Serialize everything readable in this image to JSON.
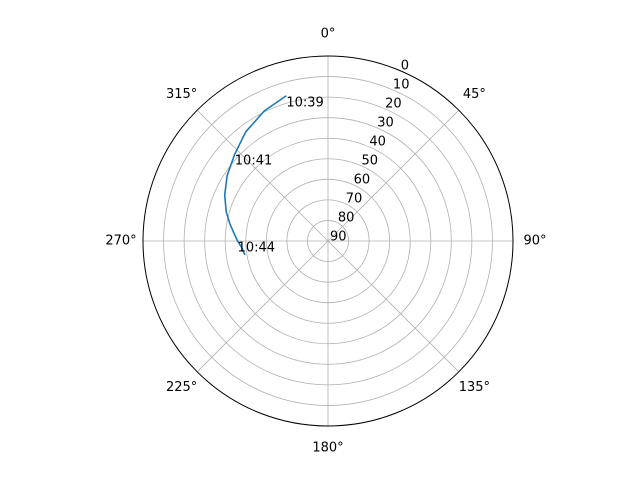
{
  "chart_data": {
    "type": "line",
    "projection": "polar",
    "theta_zero_location": "N",
    "theta_direction": "clockwise",
    "r_axis": "inverted",
    "rlim": [
      90,
      0
    ],
    "grid": true,
    "angle_ticks": [
      0,
      45,
      90,
      135,
      180,
      225,
      270,
      315
    ],
    "angle_tick_labels": [
      "0°",
      "45°",
      "90°",
      "135°",
      "180°",
      "225°",
      "270°",
      "315°"
    ],
    "radial_ticks": [
      0,
      10,
      20,
      30,
      40,
      50,
      60,
      70,
      80,
      90
    ],
    "radial_tick_labels": [
      "0",
      "10",
      "20",
      "30",
      "40",
      "50",
      "60",
      "70",
      "80",
      "90"
    ],
    "radial_label_angle": 22.5,
    "series": [
      {
        "color": "#1f77b4",
        "azimuth_deg": [
          344.0,
          334.0,
          323.0,
          313.0,
          303.0,
          294.0,
          286.0,
          280.0,
          275.0,
          270.0,
          265.5,
          260.5
        ],
        "altitude_deg": [
          16.5,
          19.5,
          23.5,
          28.0,
          31.5,
          35.0,
          38.5,
          41.5,
          44.0,
          46.0,
          48.0,
          49.0
        ]
      }
    ],
    "annotations": [
      {
        "text": "10:39",
        "azimuth_deg": 344.0,
        "altitude_deg": 16.5
      },
      {
        "text": "10:41",
        "azimuth_deg": 313.0,
        "altitude_deg": 28.0
      },
      {
        "text": "10:44",
        "azimuth_deg": 270.0,
        "altitude_deg": 46.0
      }
    ]
  }
}
